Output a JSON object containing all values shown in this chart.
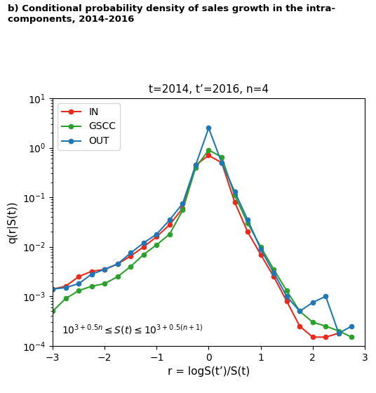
{
  "title": "t=2014, t’=2016, n=4",
  "suptitle": "b) Conditional probability density of sales growth in the intra-\ncomponents, 2014-2016",
  "xlabel": "r = logS(t’)/S(t)",
  "ylabel": "q(r|S(t))",
  "xlim": [
    -3,
    3
  ],
  "IN": {
    "x": [
      -3.0,
      -2.75,
      -2.5,
      -2.25,
      -2.0,
      -1.75,
      -1.5,
      -1.25,
      -1.0,
      -0.75,
      -0.5,
      -0.25,
      0.0,
      0.25,
      0.5,
      0.75,
      1.0,
      1.25,
      1.5,
      1.75,
      2.0,
      2.25,
      2.5
    ],
    "y": [
      0.0014,
      0.0016,
      0.0025,
      0.0032,
      0.0035,
      0.0045,
      0.0065,
      0.01,
      0.016,
      0.028,
      0.06,
      0.45,
      0.7,
      0.5,
      0.08,
      0.02,
      0.007,
      0.0025,
      0.0008,
      0.00025,
      0.00015,
      0.00015,
      0.00018
    ],
    "color": "#e8291c",
    "label": "IN"
  },
  "GSCC": {
    "x": [
      -3.0,
      -2.75,
      -2.5,
      -2.25,
      -2.0,
      -1.75,
      -1.5,
      -1.25,
      -1.0,
      -0.75,
      -0.5,
      -0.25,
      0.0,
      0.25,
      0.5,
      0.75,
      1.0,
      1.25,
      1.5,
      1.75,
      2.0,
      2.25,
      2.5,
      2.75
    ],
    "y": [
      0.0005,
      0.0009,
      0.0013,
      0.0016,
      0.0018,
      0.0025,
      0.004,
      0.007,
      0.011,
      0.018,
      0.055,
      0.4,
      0.9,
      0.65,
      0.11,
      0.03,
      0.01,
      0.0035,
      0.0013,
      0.0005,
      0.0003,
      0.00025,
      0.0002,
      0.00015
    ],
    "color": "#2ca02c",
    "label": "GSCC"
  },
  "OUT": {
    "x": [
      -3.0,
      -2.75,
      -2.5,
      -2.25,
      -2.0,
      -1.75,
      -1.5,
      -1.25,
      -1.0,
      -0.75,
      -0.5,
      -0.25,
      0.0,
      0.25,
      0.5,
      0.75,
      1.0,
      1.25,
      1.5,
      1.75,
      2.0,
      2.25,
      2.5,
      2.75
    ],
    "y": [
      0.0014,
      0.0015,
      0.0018,
      0.0028,
      0.0035,
      0.0045,
      0.0075,
      0.012,
      0.018,
      0.035,
      0.075,
      0.45,
      2.5,
      0.5,
      0.13,
      0.035,
      0.009,
      0.003,
      0.001,
      0.0005,
      0.00075,
      0.001,
      0.00018,
      0.00025
    ],
    "color": "#1f77b4",
    "label": "OUT"
  }
}
